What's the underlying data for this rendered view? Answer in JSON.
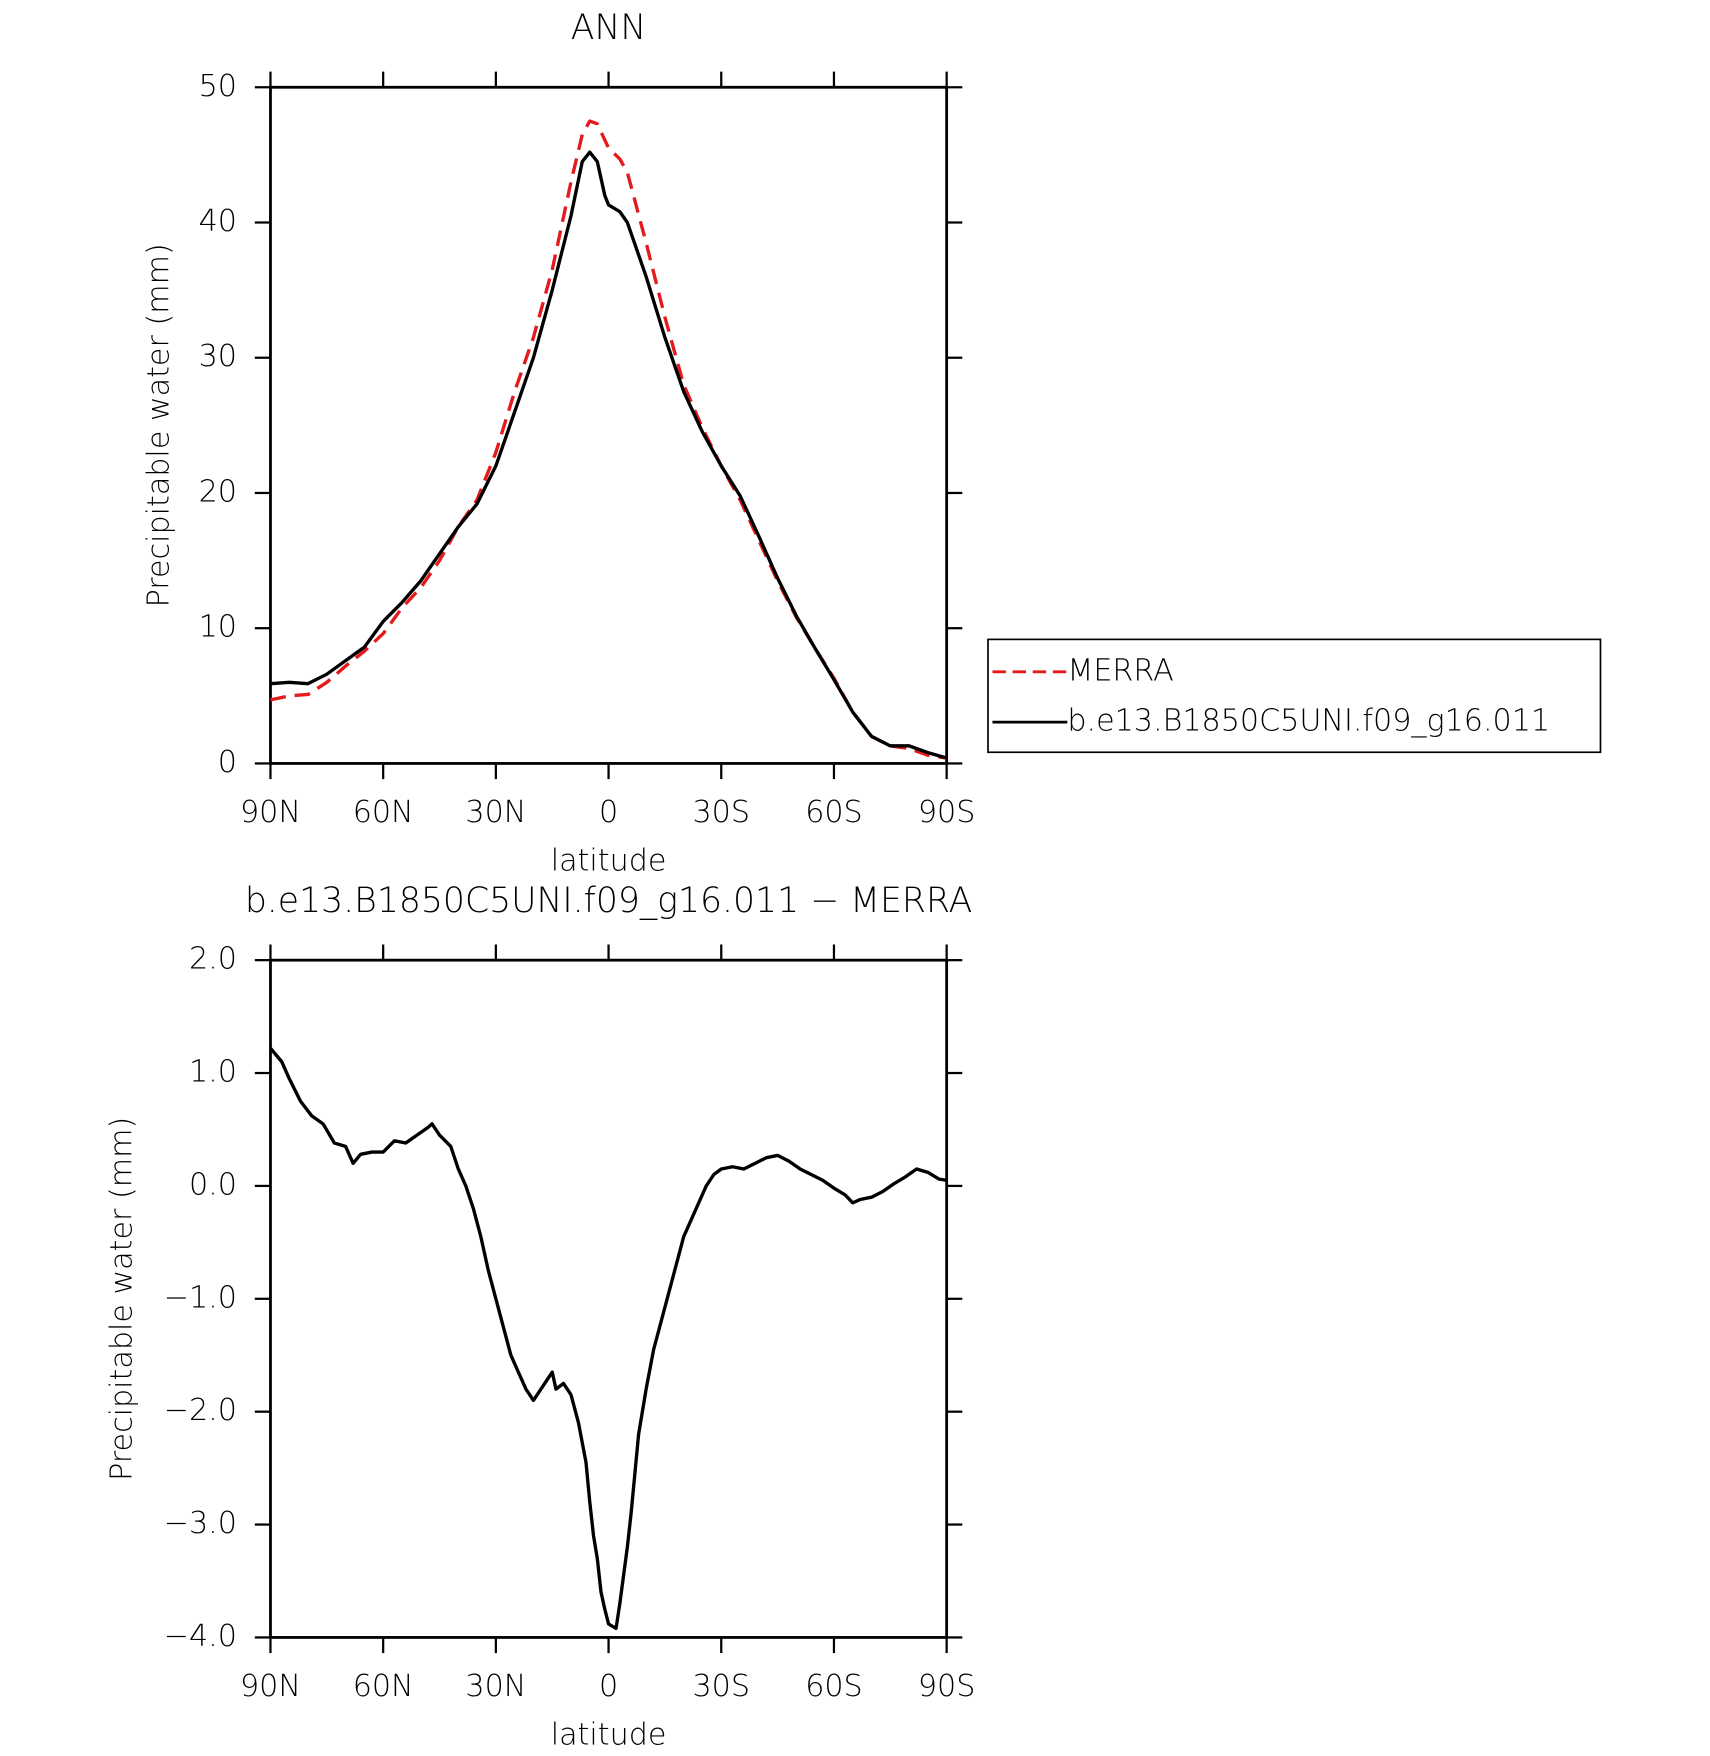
{
  "chart_data": [
    {
      "type": "line",
      "title": "ANN",
      "xlabel": "latitude",
      "ylabel": "Precipitable water (mm)",
      "xlim": [
        90,
        -90
      ],
      "xticks": [
        {
          "value": 90,
          "label": "90N"
        },
        {
          "value": 60,
          "label": "60N"
        },
        {
          "value": 30,
          "label": "30N"
        },
        0,
        {
          "value": -30,
          "label": "30S"
        },
        {
          "value": -60,
          "label": "60S"
        },
        {
          "value": -90,
          "label": "90S"
        }
      ],
      "ylim": [
        0,
        50
      ],
      "yticks": [
        0,
        10,
        20,
        30,
        40,
        50
      ],
      "legend": "right",
      "series": [
        {
          "name": "MERRA",
          "color": "#e41a1c",
          "linestyle": "dashed",
          "x": [
            90,
            85,
            80,
            75,
            70,
            65,
            60,
            55,
            50,
            45,
            40,
            35,
            30,
            25,
            20,
            15,
            10,
            7,
            5,
            3,
            0,
            -3,
            -5,
            -10,
            -15,
            -20,
            -25,
            -30,
            -35,
            -40,
            -45,
            -50,
            -55,
            -60,
            -65,
            -70,
            -75,
            -80,
            -85,
            -90
          ],
          "values": [
            4.7,
            5.0,
            5.1,
            6.0,
            7.2,
            8.3,
            9.6,
            11.5,
            13.0,
            15.0,
            17.5,
            19.5,
            23.0,
            27.5,
            31.5,
            36.5,
            43.0,
            46.5,
            47.5,
            47.3,
            45.5,
            44.7,
            43.7,
            38.5,
            33.0,
            28.0,
            24.8,
            22.0,
            19.5,
            16.5,
            13.5,
            10.8,
            8.5,
            6.3,
            3.8,
            2.0,
            1.3,
            1.1,
            0.6,
            0.4
          ]
        },
        {
          "name": "b.e13.B1850C5UNI.f09_g16.011",
          "color": "#000000",
          "linestyle": "solid",
          "x": [
            90,
            85,
            80,
            75,
            70,
            65,
            60,
            55,
            50,
            45,
            40,
            35,
            30,
            25,
            20,
            15,
            10,
            7,
            5,
            3,
            1,
            0,
            -3,
            -5,
            -10,
            -15,
            -20,
            -25,
            -30,
            -35,
            -40,
            -45,
            -50,
            -55,
            -60,
            -65,
            -70,
            -75,
            -80,
            -85,
            -90
          ],
          "values": [
            5.9,
            6.0,
            5.9,
            6.6,
            7.6,
            8.6,
            10.5,
            11.9,
            13.5,
            15.5,
            17.5,
            19.2,
            22.0,
            26.0,
            30.0,
            35.0,
            40.5,
            44.5,
            45.2,
            44.5,
            42.0,
            41.3,
            40.8,
            40.0,
            36.0,
            31.5,
            27.5,
            24.5,
            22.0,
            19.8,
            16.8,
            13.7,
            10.9,
            8.5,
            6.2,
            3.8,
            2.0,
            1.3,
            1.3,
            0.8,
            0.4
          ]
        }
      ]
    },
    {
      "type": "line",
      "title": "b.e13.B1850C5UNI.f09_g16.011 − MERRA",
      "xlabel": "latitude",
      "ylabel": "Precipitable water (mm)",
      "xlim": [
        90,
        -90
      ],
      "xticks": [
        {
          "value": 90,
          "label": "90N"
        },
        {
          "value": 60,
          "label": "60N"
        },
        {
          "value": 30,
          "label": "30N"
        },
        0,
        {
          "value": -30,
          "label": "30S"
        },
        {
          "value": -60,
          "label": "60S"
        },
        {
          "value": -90,
          "label": "90S"
        }
      ],
      "ylim": [
        -4,
        2
      ],
      "yticks": [
        {
          "value": -4,
          "label": "−4.0"
        },
        {
          "value": -3,
          "label": "−3.0"
        },
        {
          "value": -2,
          "label": "−2.0"
        },
        {
          "value": -1,
          "label": "−1.0"
        },
        {
          "value": 0,
          "label": "0.0"
        },
        {
          "value": 1,
          "label": "1.0"
        },
        {
          "value": 2,
          "label": "2.0"
        }
      ],
      "series": [
        {
          "color": "#000000",
          "linestyle": "solid",
          "x": [
            90,
            87,
            85,
            82,
            79,
            76,
            73,
            70,
            68,
            66,
            63,
            60,
            57,
            54,
            51,
            48,
            47,
            45,
            42,
            40,
            38,
            36,
            34,
            32,
            30,
            28,
            26,
            24,
            22,
            20,
            18,
            16,
            15,
            14,
            12,
            10,
            8,
            6,
            5,
            4,
            3,
            2,
            1,
            0,
            -2,
            -3,
            -4,
            -5,
            -6,
            -7,
            -8,
            -10,
            -12,
            -14,
            -16,
            -18,
            -20,
            -22,
            -24,
            -26,
            -28,
            -30,
            -33,
            -36,
            -39,
            -42,
            -45,
            -48,
            -51,
            -54,
            -57,
            -60,
            -63,
            -65,
            -67,
            -70,
            -73,
            -76,
            -79,
            -82,
            -85,
            -88,
            -90
          ],
          "values": [
            1.22,
            1.1,
            0.95,
            0.75,
            0.62,
            0.55,
            0.38,
            0.35,
            0.2,
            0.28,
            0.3,
            0.3,
            0.4,
            0.38,
            0.45,
            0.52,
            0.55,
            0.45,
            0.35,
            0.15,
            0.0,
            -0.2,
            -0.45,
            -0.75,
            -1.0,
            -1.25,
            -1.5,
            -1.65,
            -1.8,
            -1.9,
            -1.8,
            -1.7,
            -1.65,
            -1.8,
            -1.75,
            -1.85,
            -2.1,
            -2.45,
            -2.8,
            -3.1,
            -3.3,
            -3.6,
            -3.75,
            -3.88,
            -3.92,
            -3.7,
            -3.45,
            -3.2,
            -2.9,
            -2.55,
            -2.2,
            -1.8,
            -1.45,
            -1.2,
            -0.95,
            -0.7,
            -0.45,
            -0.3,
            -0.15,
            0.0,
            0.1,
            0.15,
            0.17,
            0.15,
            0.2,
            0.25,
            0.27,
            0.22,
            0.15,
            0.1,
            0.05,
            -0.02,
            -0.08,
            -0.15,
            -0.12,
            -0.1,
            -0.05,
            0.02,
            0.08,
            0.15,
            0.12,
            0.06,
            0.05
          ]
        }
      ]
    }
  ]
}
